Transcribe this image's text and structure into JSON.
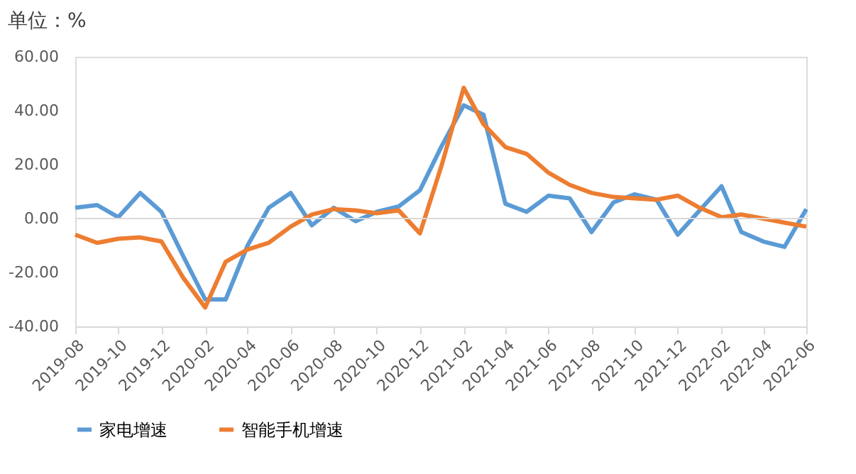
{
  "chart_data": {
    "type": "line",
    "title": "单位：%",
    "x": [
      "2019-08",
      "2019-09",
      "2019-10",
      "2019-11",
      "2019-12",
      "2020-01",
      "2020-02",
      "2020-03",
      "2020-04",
      "2020-05",
      "2020-06",
      "2020-07",
      "2020-08",
      "2020-09",
      "2020-10",
      "2020-11",
      "2020-12",
      "2021-01",
      "2021-02",
      "2021-03",
      "2021-04",
      "2021-05",
      "2021-06",
      "2021-07",
      "2021-08",
      "2021-09",
      "2021-10",
      "2021-11",
      "2021-12",
      "2022-01",
      "2022-02",
      "2022-03",
      "2022-04",
      "2022-05",
      "2022-06"
    ],
    "series": [
      {
        "name": "家电增速",
        "color": "#5b9bd5",
        "values": [
          4,
          5,
          0.5,
          9.5,
          2.5,
          -14,
          -30,
          -30,
          -10,
          4,
          9.5,
          -2.5,
          4,
          -1,
          2.5,
          4.5,
          10.5,
          27,
          42,
          38.5,
          5.5,
          2.5,
          8.5,
          7.5,
          -5,
          6,
          9,
          7,
          -6,
          3,
          12,
          -5,
          -8.5,
          -10.5,
          3.5
        ]
      },
      {
        "name": "智能手机增速",
        "color": "#ed7d31",
        "values": [
          -6,
          -9,
          -7.5,
          -7,
          -8.5,
          -22,
          -33,
          -16,
          -11.5,
          -9,
          -3,
          1.5,
          3.5,
          3,
          2,
          3,
          -5.5,
          20,
          48.5,
          35,
          26.5,
          24,
          17,
          12.5,
          9.5,
          8,
          7.5,
          7,
          8.5,
          4,
          0.5,
          1.5,
          0,
          -1.5,
          -3
        ]
      }
    ],
    "xlim": [
      "2019-08",
      "2022-06"
    ],
    "xticks": [
      "2019-08",
      "2019-10",
      "2019-12",
      "2020-02",
      "2020-04",
      "2020-06",
      "2020-08",
      "2020-10",
      "2020-12",
      "2021-02",
      "2021-04",
      "2021-06",
      "2021-08",
      "2021-10",
      "2021-12",
      "2022-02",
      "2022-04",
      "2022-06"
    ],
    "ylim": [
      -40,
      60
    ],
    "yticks": [
      {
        "value": -40,
        "label": "-40.00"
      },
      {
        "value": -20,
        "label": "-20.00"
      },
      {
        "value": 0,
        "label": "0.00"
      },
      {
        "value": 20,
        "label": "20.00"
      },
      {
        "value": 40,
        "label": "40.00"
      },
      {
        "value": 60,
        "label": "60.00"
      }
    ],
    "ref_lines": [
      {
        "axis": "y",
        "value": 0,
        "color": "#d9d9d9"
      }
    ],
    "grid": false,
    "legend": "bottom",
    "marker": "none",
    "line_style": "solid"
  }
}
